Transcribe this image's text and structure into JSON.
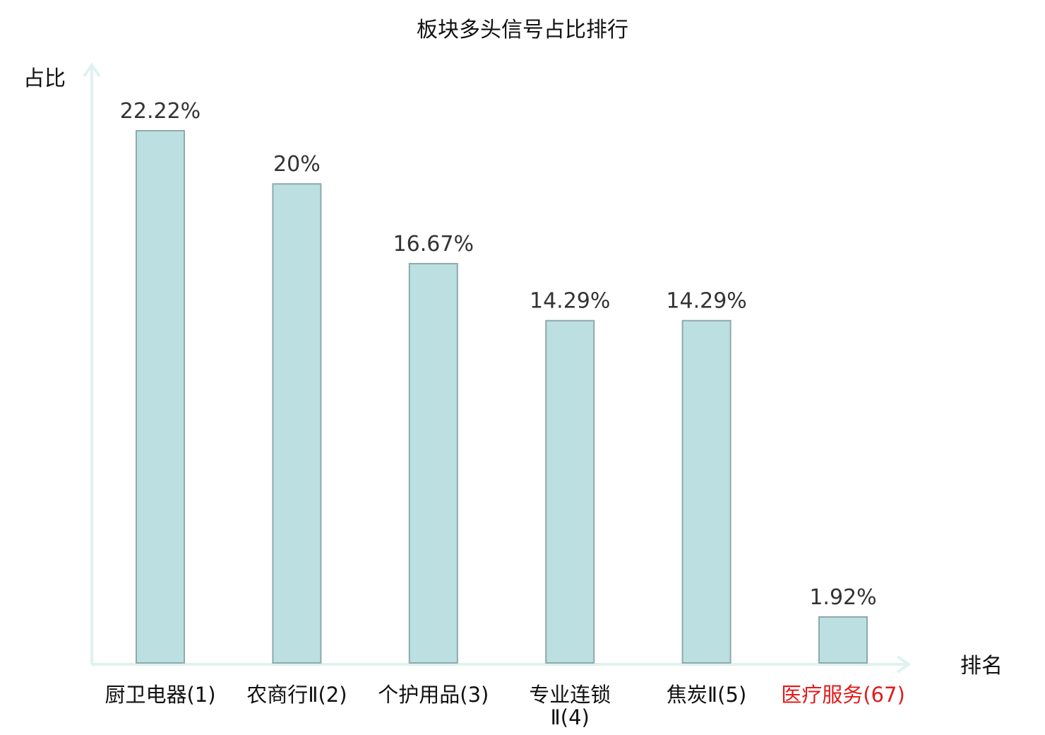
{
  "chart_data": {
    "type": "bar",
    "title": "板块多头信号占比排行",
    "ylabel": "占比",
    "xlabel": "排名",
    "categories": [
      [
        "厨卫电器(1)"
      ],
      [
        "农商行Ⅱ(2)"
      ],
      [
        "个护用品(3)"
      ],
      [
        "专业连锁",
        "Ⅱ(4)"
      ],
      [
        "焦炭Ⅱ(5)"
      ],
      [
        "医疗服务(67)"
      ]
    ],
    "values": [
      22.22,
      20,
      16.67,
      14.29,
      14.29,
      1.92
    ],
    "value_labels": [
      "22.22%",
      "20%",
      "16.67%",
      "14.29%",
      "14.29%",
      "1.92%"
    ],
    "highlight_index": 5,
    "ylim": [
      0,
      25
    ],
    "grid": false,
    "legend": "none"
  },
  "colors": {
    "bar_fill": "#bce0e2",
    "bar_stroke": "#8ea9ab",
    "axis": "#dff2ef",
    "label_text": "#111111",
    "value_text": "#333333",
    "highlight_text": "#e01b1b"
  }
}
